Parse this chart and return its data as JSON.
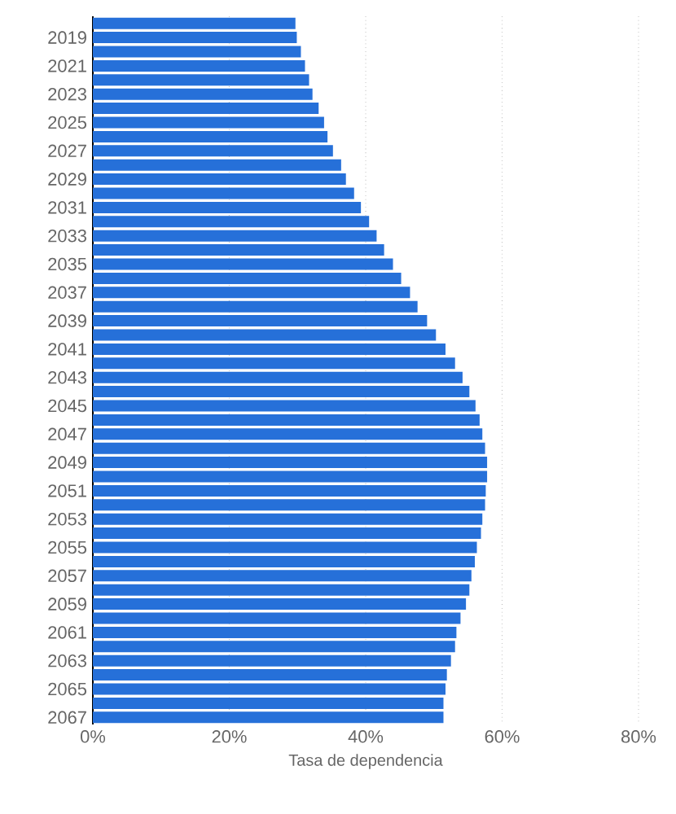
{
  "chart_data": {
    "type": "bar",
    "orientation": "horizontal",
    "xlabel": "Tasa de dependencia",
    "categories": [
      null,
      "2019",
      null,
      "2021",
      null,
      "2023",
      null,
      "2025",
      null,
      "2027",
      null,
      "2029",
      null,
      "2031",
      null,
      "2033",
      null,
      "2035",
      null,
      "2037",
      null,
      "2039",
      null,
      "2041",
      null,
      "2043",
      null,
      "2045",
      null,
      "2047",
      null,
      "2049",
      null,
      "2051",
      null,
      "2053",
      null,
      "2055",
      null,
      "2057",
      null,
      "2059",
      null,
      "2061",
      null,
      "2063",
      null,
      "2065",
      null,
      "2067"
    ],
    "values": [
      29.7,
      29.9,
      30.5,
      31.1,
      31.7,
      32.2,
      33.1,
      33.9,
      34.4,
      35.2,
      36.4,
      37.1,
      38.3,
      39.3,
      40.5,
      41.6,
      42.7,
      44.0,
      45.2,
      46.5,
      47.6,
      49.0,
      50.3,
      51.7,
      53.1,
      54.2,
      55.2,
      56.1,
      56.7,
      57.1,
      57.5,
      57.8,
      57.8,
      57.6,
      57.5,
      57.1,
      56.9,
      56.3,
      56.0,
      55.5,
      55.2,
      54.7,
      53.9,
      53.3,
      53.1,
      52.5,
      51.9,
      51.7,
      51.4,
      51.4
    ],
    "color": "#2670d9",
    "xlim": [
      0,
      80
    ],
    "xticks": [
      {
        "value": 0,
        "label": "0%"
      },
      {
        "value": 20,
        "label": "20%"
      },
      {
        "value": 40,
        "label": "40%"
      },
      {
        "value": 60,
        "label": "60%"
      },
      {
        "value": 80,
        "label": "80%"
      }
    ],
    "grid": "x"
  }
}
